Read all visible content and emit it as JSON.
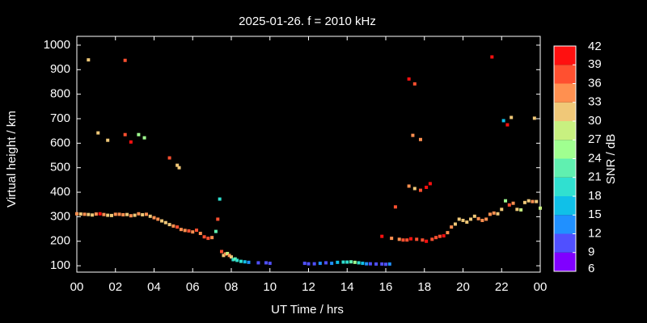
{
  "chart_data": {
    "type": "scatter",
    "title": "2025-01-26. f = 2010 kHz",
    "x_label": "UT Time / hrs",
    "y_label": "Virtual height / km",
    "colorbar_label": "SNR / dB",
    "xlim": [
      0,
      24
    ],
    "xticks": [
      {
        "value": 0,
        "label": "00"
      },
      {
        "value": 2,
        "label": "02"
      },
      {
        "value": 4,
        "label": "04"
      },
      {
        "value": 6,
        "label": "06"
      },
      {
        "value": 8,
        "label": "08"
      },
      10,
      12,
      14,
      16,
      18,
      20,
      22,
      {
        "value": 24,
        "label": "00"
      }
    ],
    "ylim": [
      74,
      1036
    ],
    "yticks": [
      100,
      200,
      300,
      400,
      500,
      600,
      700,
      800,
      900,
      1000
    ],
    "clim": [
      6,
      42
    ],
    "cticks": [
      6,
      9,
      12,
      15,
      18,
      21,
      24,
      27,
      30,
      33,
      36,
      39,
      42
    ],
    "colorscale": [
      "#8000ff",
      "#5050ff",
      "#2090ff",
      "#10c0e8",
      "#30e0d0",
      "#60f0b0",
      "#a0ff90",
      "#c8f080",
      "#f0c878",
      "#ff9050",
      "#ff5030",
      "#ff1010"
    ],
    "series": [
      {
        "x": [
          0,
          0.2,
          0.4,
          0.6,
          0.8,
          1.0,
          1.2,
          1.4,
          1.6,
          1.8,
          2.0,
          2.2,
          2.4,
          2.6,
          2.8,
          3.0,
          3.2,
          3.4,
          3.6,
          3.8,
          4.0,
          4.2,
          4.4,
          4.6,
          4.8,
          5.0,
          5.2,
          5.4,
          5.6,
          5.8,
          6.0,
          6.2,
          6.4,
          6.6,
          6.8,
          7.0,
          7.2,
          7.3,
          7.4,
          7.5,
          7.6,
          7.7,
          7.8,
          7.9,
          8.0,
          8.1,
          8.2,
          8.3,
          8.5,
          8.7,
          8.9,
          9.4,
          9.8,
          10.0,
          11.8,
          12.0,
          12.3,
          12.6,
          12.9,
          13.2,
          13.5,
          13.8,
          14.0,
          14.2,
          14.4,
          14.6,
          14.8,
          15.0,
          15.2,
          15.5,
          15.8,
          16.0,
          16.2,
          15.8,
          16.3,
          16.5,
          16.7,
          16.9,
          17.1,
          17.3,
          17.6,
          17.9,
          18.1,
          18.4,
          18.6,
          18.8,
          19.0,
          19.2,
          19.4,
          19.6,
          19.8,
          20.0,
          20.2,
          20.4,
          20.6,
          20.8,
          21.0,
          21.2,
          21.4,
          21.6,
          21.8,
          22.0,
          22.2,
          22.4,
          22.6,
          22.8,
          23.0,
          23.2,
          23.4,
          23.6,
          23.8,
          24.0,
          0.6,
          2.5,
          1.1,
          1.6,
          2.5,
          2.8,
          3.2,
          3.5,
          4.8,
          5.2,
          5.3,
          17.2,
          17.5,
          17.4,
          17.8,
          17.2,
          17.5,
          17.8,
          18.1,
          18.3,
          21.5,
          22.1,
          22.3,
          22.5,
          23.7
        ],
        "values": [
          312,
          311,
          310,
          309,
          307,
          311,
          312,
          309,
          306,
          305,
          310,
          310,
          308,
          309,
          304,
          306,
          312,
          308,
          310,
          302,
          296,
          290,
          283,
          276,
          268,
          262,
          258,
          248,
          244,
          242,
          238,
          245,
          232,
          218,
          212,
          215,
          240,
          290,
          372,
          158,
          142,
          148,
          150,
          142,
          136,
          125,
          128,
          122,
          118,
          116,
          114,
          112,
          112,
          110,
          110,
          108,
          108,
          110,
          112,
          110,
          114,
          115,
          115,
          116,
          114,
          112,
          110,
          108,
          108,
          107,
          107,
          106,
          107,
          220,
          212,
          340,
          208,
          205,
          205,
          210,
          208,
          205,
          200,
          208,
          215,
          220,
          222,
          235,
          258,
          270,
          290,
          285,
          278,
          290,
          302,
          292,
          285,
          290,
          310,
          315,
          312,
          330,
          365,
          348,
          355,
          330,
          328,
          358,
          365,
          362,
          362,
          335,
          940,
          938,
          642,
          612,
          635,
          605,
          635,
          622,
          540,
          510,
          500,
          862,
          842,
          632,
          615,
          425,
          415,
          408,
          420,
          435,
          952,
          692,
          675,
          705,
          702
        ],
        "snr": [
          33,
          32,
          33,
          31,
          32,
          34,
          39,
          33,
          32,
          31,
          33,
          34,
          33,
          32,
          33,
          32,
          33,
          31,
          33,
          32,
          33,
          33,
          32,
          31,
          31,
          35,
          36,
          35,
          33,
          36,
          33,
          37,
          34,
          36,
          37,
          35,
          22,
          36,
          20,
          37,
          30,
          33,
          27,
          34,
          31,
          20,
          22,
          19,
          18,
          16,
          14,
          11,
          11,
          11,
          10,
          11,
          11,
          13,
          11,
          14,
          16,
          19,
          20,
          21,
          24,
          20,
          16,
          13,
          11,
          10,
          11,
          10,
          13,
          40,
          33,
          38,
          34,
          38,
          37,
          39,
          36,
          38,
          39,
          37,
          38,
          38,
          39,
          35,
          33,
          32,
          30,
          31,
          30,
          31,
          32,
          33,
          33,
          34,
          35,
          33,
          32,
          30,
          24,
          36,
          34,
          30,
          29,
          31,
          32,
          33,
          32,
          28,
          32,
          38,
          31,
          31,
          38,
          40,
          26,
          25,
          36,
          31,
          31,
          40,
          37,
          33,
          34,
          33,
          32,
          37,
          39,
          39,
          40,
          17,
          39,
          32,
          32
        ]
      }
    ]
  }
}
